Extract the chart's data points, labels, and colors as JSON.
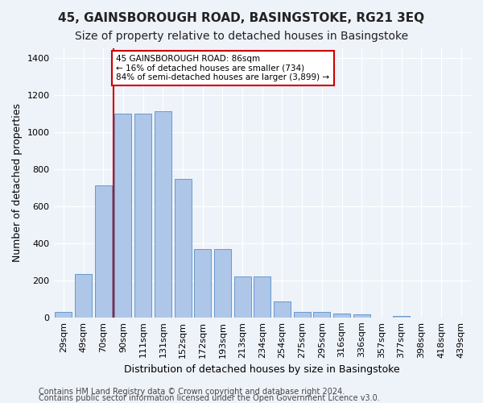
{
  "title": "45, GAINSBOROUGH ROAD, BASINGSTOKE, RG21 3EQ",
  "subtitle": "Size of property relative to detached houses in Basingstoke",
  "xlabel": "Distribution of detached houses by size in Basingstoke",
  "ylabel": "Number of detached properties",
  "footnote1": "Contains HM Land Registry data © Crown copyright and database right 2024.",
  "footnote2": "Contains public sector information licensed under the Open Government Licence v3.0.",
  "bar_labels": [
    "29sqm",
    "49sqm",
    "70sqm",
    "90sqm",
    "111sqm",
    "131sqm",
    "152sqm",
    "172sqm",
    "193sqm",
    "213sqm",
    "234sqm",
    "254sqm",
    "275sqm",
    "295sqm",
    "316sqm",
    "336sqm",
    "357sqm",
    "377sqm",
    "398sqm",
    "418sqm",
    "439sqm"
  ],
  "bar_values": [
    30,
    235,
    710,
    1100,
    1100,
    1110,
    745,
    370,
    370,
    220,
    220,
    85,
    30,
    30,
    20,
    15,
    0,
    10,
    0,
    0,
    0
  ],
  "bar_color": "#aec6e8",
  "bar_edgecolor": "#6699cc",
  "vline_index": 2,
  "vline_color": "#cc0000",
  "annotation_text": "45 GAINSBOROUGH ROAD: 86sqm\n← 16% of detached houses are smaller (734)\n84% of semi-detached houses are larger (3,899) →",
  "annotation_box_color": "#ffffff",
  "annotation_box_edgecolor": "#cc0000",
  "ylim": [
    0,
    1450
  ],
  "background_color": "#eef2f9",
  "grid_color": "#ffffff",
  "title_fontsize": 11,
  "subtitle_fontsize": 10,
  "xlabel_fontsize": 9,
  "ylabel_fontsize": 9,
  "tick_fontsize": 8,
  "footnote_fontsize": 7,
  "yticks": [
    0,
    200,
    400,
    600,
    800,
    1000,
    1200,
    1400
  ]
}
